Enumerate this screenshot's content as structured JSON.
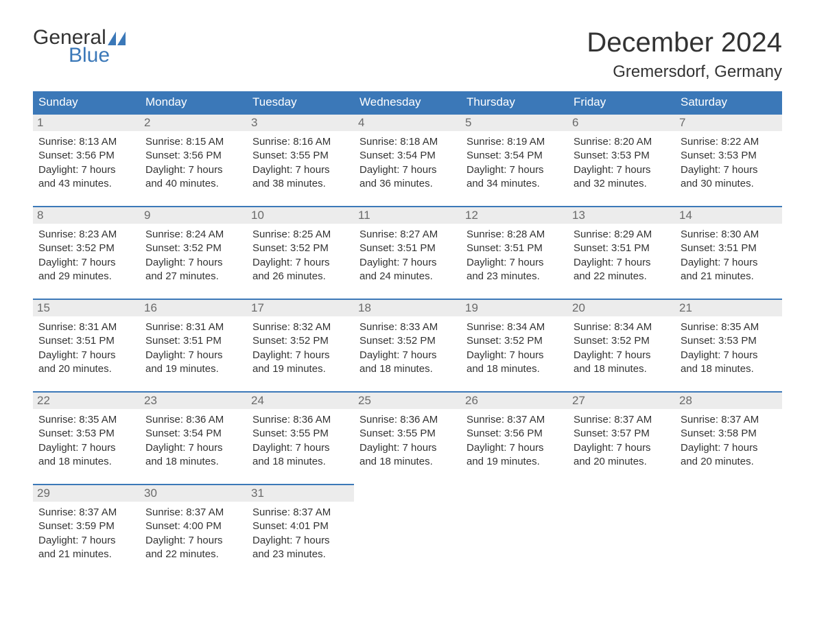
{
  "logo": {
    "word1": "General",
    "word2": "Blue"
  },
  "title": "December 2024",
  "location": "Gremersdorf, Germany",
  "colors": {
    "header_bg": "#3b78b8",
    "header_text": "#ffffff",
    "date_strip_bg": "#ececec",
    "date_strip_border": "#3b78b8",
    "date_text": "#6a6a6a",
    "body_text": "#333333",
    "logo_blue": "#3b78b8"
  },
  "day_names": [
    "Sunday",
    "Monday",
    "Tuesday",
    "Wednesday",
    "Thursday",
    "Friday",
    "Saturday"
  ],
  "weeks": [
    [
      {
        "date": "1",
        "sunrise": "Sunrise: 8:13 AM",
        "sunset": "Sunset: 3:56 PM",
        "dl1": "Daylight: 7 hours",
        "dl2": "and 43 minutes."
      },
      {
        "date": "2",
        "sunrise": "Sunrise: 8:15 AM",
        "sunset": "Sunset: 3:56 PM",
        "dl1": "Daylight: 7 hours",
        "dl2": "and 40 minutes."
      },
      {
        "date": "3",
        "sunrise": "Sunrise: 8:16 AM",
        "sunset": "Sunset: 3:55 PM",
        "dl1": "Daylight: 7 hours",
        "dl2": "and 38 minutes."
      },
      {
        "date": "4",
        "sunrise": "Sunrise: 8:18 AM",
        "sunset": "Sunset: 3:54 PM",
        "dl1": "Daylight: 7 hours",
        "dl2": "and 36 minutes."
      },
      {
        "date": "5",
        "sunrise": "Sunrise: 8:19 AM",
        "sunset": "Sunset: 3:54 PM",
        "dl1": "Daylight: 7 hours",
        "dl2": "and 34 minutes."
      },
      {
        "date": "6",
        "sunrise": "Sunrise: 8:20 AM",
        "sunset": "Sunset: 3:53 PM",
        "dl1": "Daylight: 7 hours",
        "dl2": "and 32 minutes."
      },
      {
        "date": "7",
        "sunrise": "Sunrise: 8:22 AM",
        "sunset": "Sunset: 3:53 PM",
        "dl1": "Daylight: 7 hours",
        "dl2": "and 30 minutes."
      }
    ],
    [
      {
        "date": "8",
        "sunrise": "Sunrise: 8:23 AM",
        "sunset": "Sunset: 3:52 PM",
        "dl1": "Daylight: 7 hours",
        "dl2": "and 29 minutes."
      },
      {
        "date": "9",
        "sunrise": "Sunrise: 8:24 AM",
        "sunset": "Sunset: 3:52 PM",
        "dl1": "Daylight: 7 hours",
        "dl2": "and 27 minutes."
      },
      {
        "date": "10",
        "sunrise": "Sunrise: 8:25 AM",
        "sunset": "Sunset: 3:52 PM",
        "dl1": "Daylight: 7 hours",
        "dl2": "and 26 minutes."
      },
      {
        "date": "11",
        "sunrise": "Sunrise: 8:27 AM",
        "sunset": "Sunset: 3:51 PM",
        "dl1": "Daylight: 7 hours",
        "dl2": "and 24 minutes."
      },
      {
        "date": "12",
        "sunrise": "Sunrise: 8:28 AM",
        "sunset": "Sunset: 3:51 PM",
        "dl1": "Daylight: 7 hours",
        "dl2": "and 23 minutes."
      },
      {
        "date": "13",
        "sunrise": "Sunrise: 8:29 AM",
        "sunset": "Sunset: 3:51 PM",
        "dl1": "Daylight: 7 hours",
        "dl2": "and 22 minutes."
      },
      {
        "date": "14",
        "sunrise": "Sunrise: 8:30 AM",
        "sunset": "Sunset: 3:51 PM",
        "dl1": "Daylight: 7 hours",
        "dl2": "and 21 minutes."
      }
    ],
    [
      {
        "date": "15",
        "sunrise": "Sunrise: 8:31 AM",
        "sunset": "Sunset: 3:51 PM",
        "dl1": "Daylight: 7 hours",
        "dl2": "and 20 minutes."
      },
      {
        "date": "16",
        "sunrise": "Sunrise: 8:31 AM",
        "sunset": "Sunset: 3:51 PM",
        "dl1": "Daylight: 7 hours",
        "dl2": "and 19 minutes."
      },
      {
        "date": "17",
        "sunrise": "Sunrise: 8:32 AM",
        "sunset": "Sunset: 3:52 PM",
        "dl1": "Daylight: 7 hours",
        "dl2": "and 19 minutes."
      },
      {
        "date": "18",
        "sunrise": "Sunrise: 8:33 AM",
        "sunset": "Sunset: 3:52 PM",
        "dl1": "Daylight: 7 hours",
        "dl2": "and 18 minutes."
      },
      {
        "date": "19",
        "sunrise": "Sunrise: 8:34 AM",
        "sunset": "Sunset: 3:52 PM",
        "dl1": "Daylight: 7 hours",
        "dl2": "and 18 minutes."
      },
      {
        "date": "20",
        "sunrise": "Sunrise: 8:34 AM",
        "sunset": "Sunset: 3:52 PM",
        "dl1": "Daylight: 7 hours",
        "dl2": "and 18 minutes."
      },
      {
        "date": "21",
        "sunrise": "Sunrise: 8:35 AM",
        "sunset": "Sunset: 3:53 PM",
        "dl1": "Daylight: 7 hours",
        "dl2": "and 18 minutes."
      }
    ],
    [
      {
        "date": "22",
        "sunrise": "Sunrise: 8:35 AM",
        "sunset": "Sunset: 3:53 PM",
        "dl1": "Daylight: 7 hours",
        "dl2": "and 18 minutes."
      },
      {
        "date": "23",
        "sunrise": "Sunrise: 8:36 AM",
        "sunset": "Sunset: 3:54 PM",
        "dl1": "Daylight: 7 hours",
        "dl2": "and 18 minutes."
      },
      {
        "date": "24",
        "sunrise": "Sunrise: 8:36 AM",
        "sunset": "Sunset: 3:55 PM",
        "dl1": "Daylight: 7 hours",
        "dl2": "and 18 minutes."
      },
      {
        "date": "25",
        "sunrise": "Sunrise: 8:36 AM",
        "sunset": "Sunset: 3:55 PM",
        "dl1": "Daylight: 7 hours",
        "dl2": "and 18 minutes."
      },
      {
        "date": "26",
        "sunrise": "Sunrise: 8:37 AM",
        "sunset": "Sunset: 3:56 PM",
        "dl1": "Daylight: 7 hours",
        "dl2": "and 19 minutes."
      },
      {
        "date": "27",
        "sunrise": "Sunrise: 8:37 AM",
        "sunset": "Sunset: 3:57 PM",
        "dl1": "Daylight: 7 hours",
        "dl2": "and 20 minutes."
      },
      {
        "date": "28",
        "sunrise": "Sunrise: 8:37 AM",
        "sunset": "Sunset: 3:58 PM",
        "dl1": "Daylight: 7 hours",
        "dl2": "and 20 minutes."
      }
    ],
    [
      {
        "date": "29",
        "sunrise": "Sunrise: 8:37 AM",
        "sunset": "Sunset: 3:59 PM",
        "dl1": "Daylight: 7 hours",
        "dl2": "and 21 minutes."
      },
      {
        "date": "30",
        "sunrise": "Sunrise: 8:37 AM",
        "sunset": "Sunset: 4:00 PM",
        "dl1": "Daylight: 7 hours",
        "dl2": "and 22 minutes."
      },
      {
        "date": "31",
        "sunrise": "Sunrise: 8:37 AM",
        "sunset": "Sunset: 4:01 PM",
        "dl1": "Daylight: 7 hours",
        "dl2": "and 23 minutes."
      },
      null,
      null,
      null,
      null
    ]
  ]
}
